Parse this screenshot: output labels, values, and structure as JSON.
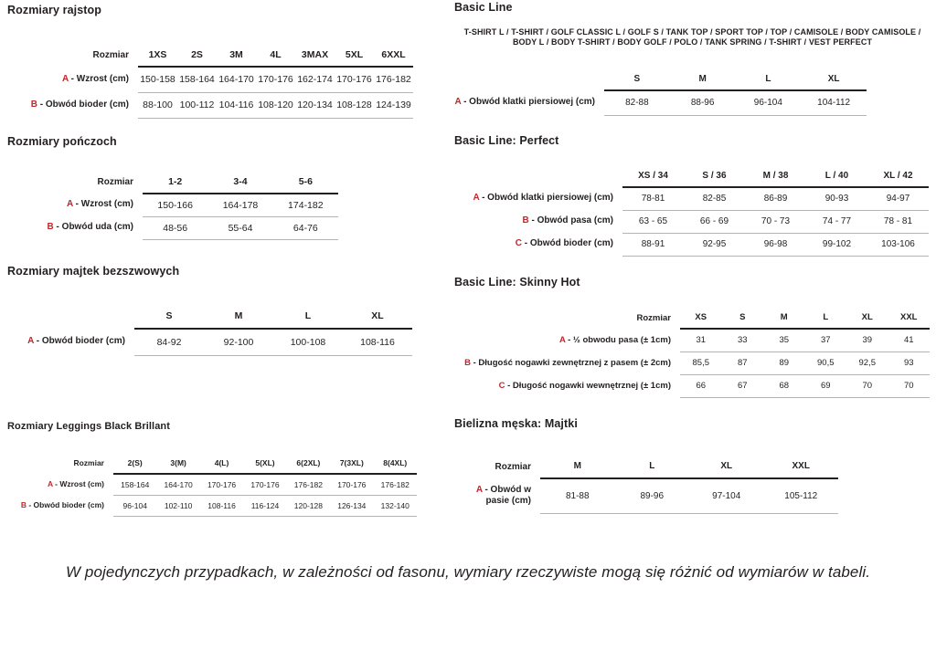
{
  "colors": {
    "accent_red": "#c1272d",
    "text": "#231f20",
    "thin_line": "#b4b4b4"
  },
  "sections": {
    "rajstopy": {
      "title": "Rozmiary rajstop",
      "table": {
        "corner": "Rozmiar",
        "columns": [
          "1XS",
          "2S",
          "3M",
          "4L",
          "3MAX",
          "5XL",
          "6XXL"
        ],
        "rows": [
          {
            "letter": "A",
            "label": "- Wzrost (cm)",
            "values": [
              "150-158",
              "158-164",
              "164-170",
              "170-176",
              "162-174",
              "170-176",
              "176-182"
            ]
          },
          {
            "letter": "B",
            "label": "- Obwód bioder (cm)",
            "values": [
              "88-100",
              "100-112",
              "104-116",
              "108-120",
              "120-134",
              "108-128",
              "124-139"
            ]
          }
        ]
      }
    },
    "ponczochy": {
      "title": "Rozmiary pończoch",
      "table": {
        "corner": "Rozmiar",
        "columns": [
          "1-2",
          "3-4",
          "5-6"
        ],
        "rows": [
          {
            "letter": "A",
            "label": "- Wzrost (cm)",
            "values": [
              "150-166",
              "164-178",
              "174-182"
            ]
          },
          {
            "letter": "B",
            "label": "- Obwód uda (cm)",
            "values": [
              "48-56",
              "55-64",
              "64-76"
            ]
          }
        ]
      }
    },
    "majtki_bezszwowe": {
      "title": "Rozmiary majtek bezszwowych",
      "table": {
        "corner": "",
        "columns": [
          "S",
          "M",
          "L",
          "XL"
        ],
        "rows": [
          {
            "letter": "A",
            "label": "- Obwód bioder (cm)",
            "values": [
              "84-92",
              "92-100",
              "100-108",
              "108-116"
            ]
          }
        ]
      }
    },
    "leggings_black_brillant": {
      "title": "Rozmiary Leggings Black Brillant",
      "table": {
        "corner": "Rozmiar",
        "columns": [
          "2(S)",
          "3(M)",
          "4(L)",
          "5(XL)",
          "6(2XL)",
          "7(3XL)",
          "8(4XL)"
        ],
        "rows": [
          {
            "letter": "A",
            "label": "- Wzrost (cm)",
            "values": [
              "158-164",
              "164-170",
              "170-176",
              "170-176",
              "176-182",
              "170-176",
              "176-182"
            ]
          },
          {
            "letter": "B",
            "label": "- Obwód bioder (cm)",
            "values": [
              "96-104",
              "102-110",
              "108-116",
              "116-124",
              "120-128",
              "126-134",
              "132-140"
            ]
          }
        ]
      }
    },
    "basic_line": {
      "title": "Basic Line",
      "subtitle": "T-SHIRT L / T-SHIRT / GOLF CLASSIC L / GOLF S / TANK TOP / SPORT TOP / TOP / CAMISOLE / BODY CAMISOLE / BODY L / BODY T-SHIRT / BODY GOLF / POLO / TANK SPRING / T-SHIRT / VEST PERFECT",
      "table": {
        "corner": "",
        "columns": [
          "S",
          "M",
          "L",
          "XL"
        ],
        "rows": [
          {
            "letter": "A",
            "label": "- Obwód klatki piersiowej (cm)",
            "values": [
              "82-88",
              "88-96",
              "96-104",
              "104-112"
            ]
          }
        ]
      }
    },
    "basic_line_perfect": {
      "title": "Basic Line: Perfect",
      "table": {
        "corner": "",
        "columns": [
          "XS / 34",
          "S / 36",
          "M / 38",
          "L / 40",
          "XL / 42"
        ],
        "rows": [
          {
            "letter": "A",
            "label": "- Obwód klatki piersiowej (cm)",
            "values": [
              "78-81",
              "82-85",
              "86-89",
              "90-93",
              "94-97"
            ]
          },
          {
            "letter": "B",
            "label": "- Obwód pasa (cm)",
            "values": [
              "63 - 65",
              "66 - 69",
              "70 - 73",
              "74 - 77",
              "78 - 81"
            ]
          },
          {
            "letter": "C",
            "label": "- Obwód bioder (cm)",
            "values": [
              "88-91",
              "92-95",
              "96-98",
              "99-102",
              "103-106"
            ]
          }
        ]
      }
    },
    "basic_line_skinny_hot": {
      "title": "Basic Line: Skinny Hot",
      "table": {
        "corner": "Rozmiar",
        "columns": [
          "XS",
          "S",
          "M",
          "L",
          "XL",
          "XXL"
        ],
        "rows": [
          {
            "letter": "A",
            "label": "- ½ obwodu pasa (± 1cm)",
            "values": [
              "31",
              "33",
              "35",
              "37",
              "39",
              "41"
            ]
          },
          {
            "letter": "B",
            "label": "- Długość nogawki zewnętrznej z pasem (± 2cm)",
            "values": [
              "85,5",
              "87",
              "89",
              "90,5",
              "92,5",
              "93"
            ]
          },
          {
            "letter": "C",
            "label": "- Długość nogawki wewnętrznej (± 1cm)",
            "values": [
              "66",
              "67",
              "68",
              "69",
              "70",
              "70"
            ]
          }
        ]
      }
    },
    "bielizna_meska_majtki": {
      "title": "Bielizna męska: Majtki",
      "table": {
        "corner": "Rozmiar",
        "columns": [
          "M",
          "L",
          "XL",
          "XXL"
        ],
        "rows": [
          {
            "letter": "A",
            "label": "- Obwód w pasie (cm)",
            "values": [
              "81-88",
              "89-96",
              "97-104",
              "105-112"
            ]
          }
        ]
      }
    }
  },
  "footnote": "W pojedynczych przypadkach, w zależności od fasonu, wymiary rzeczywiste mogą się różnić od wymiarów w tabeli."
}
